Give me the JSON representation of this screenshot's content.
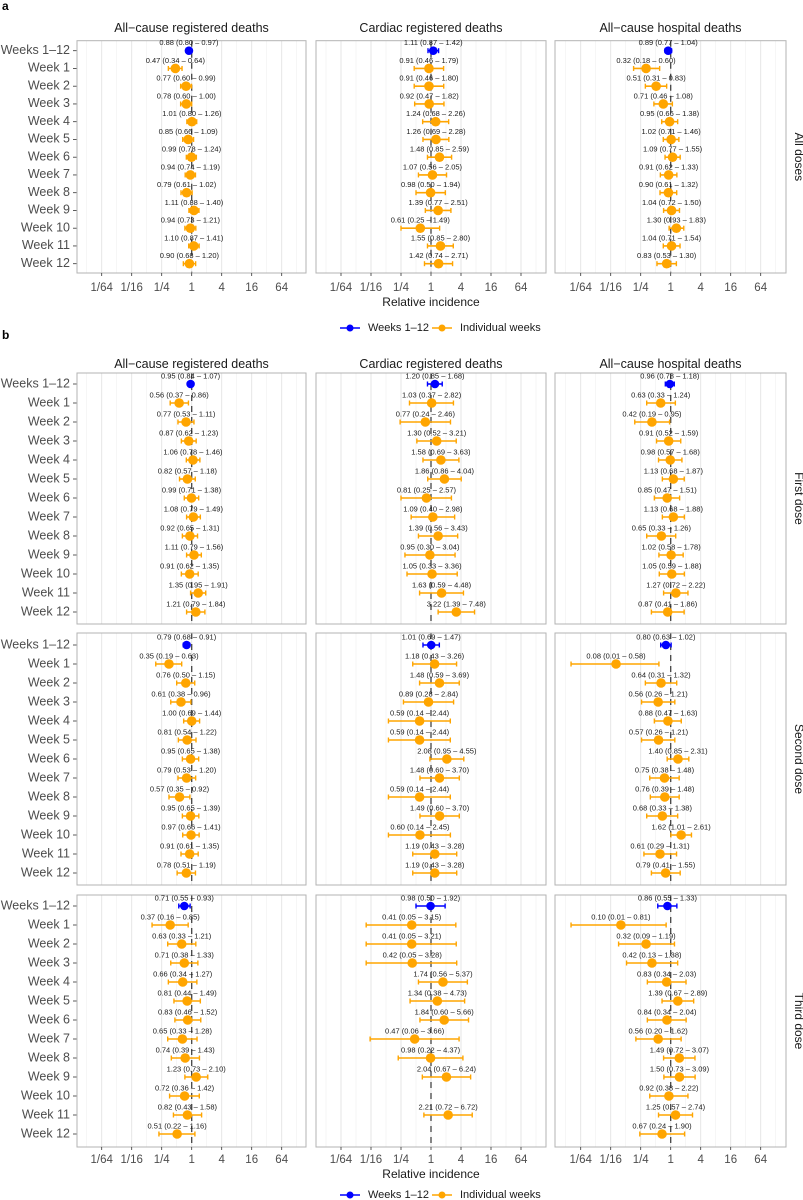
{
  "section_labels": [
    "a",
    "b"
  ],
  "column_titles": [
    "All−cause registered deaths",
    "Cardiac registered deaths",
    "All−cause hospital deaths"
  ],
  "strip_labels": [
    "All doses",
    "First dose",
    "Second dose",
    "Third dose"
  ],
  "chart_data": {
    "type": "scatter",
    "subtype": "forest plot with 95% interval error bars",
    "xlabel": "Relative incidence",
    "x_scale": "log",
    "xlim": [
      0.005,
      195
    ],
    "x_tick_labels": [
      "1/64",
      "1/16",
      "1/4",
      "1",
      "4",
      "16",
      "64"
    ],
    "reference_line": 1,
    "grid": true,
    "categories": [
      "Weeks 1–12",
      "Week 1",
      "Week 2",
      "Week 3",
      "Week 4",
      "Week 5",
      "Week 6",
      "Week 7",
      "Week 8",
      "Week 9",
      "Week 10",
      "Week 11",
      "Week 12"
    ],
    "legend": [
      {
        "name": "Weeks 1–12",
        "color": "#0000FF"
      },
      {
        "name": "Individual weeks",
        "color": "#FFA500"
      }
    ],
    "legend_placement": "bottom",
    "value_format": "estimate (lower – upper)",
    "panels": [
      {
        "section": "a",
        "strip": "All doses",
        "column": "All−cause registered deaths",
        "values": [
          [
            0.88,
            0.8,
            0.97
          ],
          [
            0.47,
            0.34,
            0.64
          ],
          [
            0.77,
            0.6,
            0.99
          ],
          [
            0.78,
            0.6,
            1.0
          ],
          [
            1.01,
            0.8,
            1.26
          ],
          [
            0.85,
            0.66,
            1.09
          ],
          [
            0.99,
            0.78,
            1.24
          ],
          [
            0.94,
            0.74,
            1.19
          ],
          [
            0.79,
            0.61,
            1.02
          ],
          [
            1.11,
            0.88,
            1.4
          ],
          [
            0.94,
            0.73,
            1.21
          ],
          [
            1.1,
            0.87,
            1.41
          ],
          [
            0.9,
            0.68,
            1.2
          ]
        ]
      },
      {
        "section": "a",
        "strip": "All doses",
        "column": "Cardiac registered deaths",
        "values": [
          [
            1.11,
            0.87,
            1.42
          ],
          [
            0.91,
            0.46,
            1.79
          ],
          [
            0.91,
            0.46,
            1.8
          ],
          [
            0.92,
            0.47,
            1.82
          ],
          [
            1.24,
            0.68,
            2.26
          ],
          [
            1.26,
            0.69,
            2.28
          ],
          [
            1.48,
            0.85,
            2.59
          ],
          [
            1.07,
            0.56,
            2.05
          ],
          [
            0.98,
            0.5,
            1.94
          ],
          [
            1.39,
            0.77,
            2.51
          ],
          [
            0.61,
            0.25,
            1.49
          ],
          [
            1.55,
            0.85,
            2.8
          ],
          [
            1.42,
            0.74,
            2.71
          ]
        ]
      },
      {
        "section": "a",
        "strip": "All doses",
        "column": "All−cause hospital deaths",
        "values": [
          [
            0.89,
            0.77,
            1.04
          ],
          [
            0.32,
            0.18,
            0.6
          ],
          [
            0.51,
            0.31,
            0.83
          ],
          [
            0.71,
            0.46,
            1.08
          ],
          [
            0.95,
            0.66,
            1.38
          ],
          [
            1.02,
            0.71,
            1.46
          ],
          [
            1.09,
            0.77,
            1.55
          ],
          [
            0.91,
            0.62,
            1.33
          ],
          [
            0.9,
            0.61,
            1.32
          ],
          [
            1.04,
            0.72,
            1.5
          ],
          [
            1.3,
            0.93,
            1.83
          ],
          [
            1.04,
            0.71,
            1.54
          ],
          [
            0.83,
            0.53,
            1.3
          ]
        ]
      },
      {
        "section": "b",
        "strip": "First dose",
        "column": "All−cause registered deaths",
        "values": [
          [
            0.95,
            0.84,
            1.07
          ],
          [
            0.56,
            0.37,
            0.86
          ],
          [
            0.77,
            0.53,
            1.11
          ],
          [
            0.87,
            0.62,
            1.23
          ],
          [
            1.06,
            0.78,
            1.46
          ],
          [
            0.82,
            0.57,
            1.18
          ],
          [
            0.99,
            0.71,
            1.38
          ],
          [
            1.08,
            0.79,
            1.49
          ],
          [
            0.92,
            0.65,
            1.31
          ],
          [
            1.11,
            0.79,
            1.56
          ],
          [
            0.91,
            0.62,
            1.35
          ],
          [
            1.35,
            0.95,
            1.91
          ],
          [
            1.21,
            0.79,
            1.84
          ]
        ]
      },
      {
        "section": "b",
        "strip": "First dose",
        "column": "Cardiac registered deaths",
        "values": [
          [
            1.2,
            0.85,
            1.68
          ],
          [
            1.03,
            0.37,
            2.82
          ],
          [
            0.77,
            0.24,
            2.46
          ],
          [
            1.3,
            0.52,
            3.21
          ],
          [
            1.58,
            0.69,
            3.63
          ],
          [
            1.86,
            0.86,
            4.04
          ],
          [
            0.81,
            0.25,
            2.57
          ],
          [
            1.09,
            0.4,
            2.98
          ],
          [
            1.39,
            0.56,
            3.43
          ],
          [
            0.95,
            0.3,
            3.04
          ],
          [
            1.05,
            0.33,
            3.36
          ],
          [
            1.63,
            0.59,
            4.48
          ],
          [
            3.22,
            1.39,
            7.48
          ]
        ]
      },
      {
        "section": "b",
        "strip": "First dose",
        "column": "All−cause hospital deaths",
        "values": [
          [
            0.96,
            0.78,
            1.18
          ],
          [
            0.63,
            0.33,
            1.24
          ],
          [
            0.42,
            0.19,
            0.95
          ],
          [
            0.91,
            0.52,
            1.59
          ],
          [
            0.98,
            0.57,
            1.68
          ],
          [
            1.13,
            0.68,
            1.87
          ],
          [
            0.85,
            0.47,
            1.51
          ],
          [
            1.13,
            0.68,
            1.88
          ],
          [
            0.65,
            0.33,
            1.26
          ],
          [
            1.02,
            0.58,
            1.78
          ],
          [
            1.05,
            0.59,
            1.88
          ],
          [
            1.27,
            0.72,
            2.22
          ],
          [
            0.87,
            0.41,
            1.86
          ]
        ]
      },
      {
        "section": "b",
        "strip": "Second dose",
        "column": "All−cause registered deaths",
        "values": [
          [
            0.79,
            0.68,
            0.91
          ],
          [
            0.35,
            0.19,
            0.63
          ],
          [
            0.76,
            0.5,
            1.15
          ],
          [
            0.61,
            0.38,
            0.96
          ],
          [
            1.0,
            0.69,
            1.44
          ],
          [
            0.81,
            0.54,
            1.22
          ],
          [
            0.95,
            0.65,
            1.38
          ],
          [
            0.79,
            0.53,
            1.2
          ],
          [
            0.57,
            0.35,
            0.92
          ],
          [
            0.95,
            0.65,
            1.39
          ],
          [
            0.97,
            0.66,
            1.41
          ],
          [
            0.91,
            0.61,
            1.35
          ],
          [
            0.78,
            0.51,
            1.19
          ]
        ]
      },
      {
        "section": "b",
        "strip": "Second dose",
        "column": "Cardiac registered deaths",
        "values": [
          [
            1.01,
            0.69,
            1.47
          ],
          [
            1.18,
            0.43,
            3.26
          ],
          [
            1.48,
            0.59,
            3.69
          ],
          [
            0.89,
            0.28,
            2.84
          ],
          [
            0.59,
            0.14,
            2.44
          ],
          [
            0.59,
            0.14,
            2.44
          ],
          [
            2.08,
            0.95,
            4.55
          ],
          [
            1.48,
            0.6,
            3.7
          ],
          [
            0.59,
            0.14,
            2.44
          ],
          [
            1.49,
            0.6,
            3.7
          ],
          [
            0.6,
            0.14,
            2.45
          ],
          [
            1.19,
            0.43,
            3.28
          ],
          [
            1.19,
            0.43,
            3.28
          ]
        ]
      },
      {
        "section": "b",
        "strip": "Second dose",
        "column": "All−cause hospital deaths",
        "values": [
          [
            0.8,
            0.63,
            1.02
          ],
          [
            0.08,
            0.01,
            0.58
          ],
          [
            0.64,
            0.31,
            1.32
          ],
          [
            0.56,
            0.26,
            1.21
          ],
          [
            0.88,
            0.47,
            1.63
          ],
          [
            0.57,
            0.26,
            1.21
          ],
          [
            1.4,
            0.85,
            2.31
          ],
          [
            0.75,
            0.38,
            1.48
          ],
          [
            0.76,
            0.39,
            1.48
          ],
          [
            0.68,
            0.33,
            1.38
          ],
          [
            1.62,
            1.01,
            2.61
          ],
          [
            0.61,
            0.29,
            1.31
          ],
          [
            0.79,
            0.41,
            1.55
          ]
        ]
      },
      {
        "section": "b",
        "strip": "Third dose",
        "column": "All−cause registered deaths",
        "values": [
          [
            0.71,
            0.55,
            0.93
          ],
          [
            0.37,
            0.16,
            0.85
          ],
          [
            0.63,
            0.33,
            1.21
          ],
          [
            0.71,
            0.38,
            1.33
          ],
          [
            0.66,
            0.34,
            1.27
          ],
          [
            0.81,
            0.44,
            1.49
          ],
          [
            0.83,
            0.46,
            1.52
          ],
          [
            0.65,
            0.33,
            1.28
          ],
          [
            0.74,
            0.39,
            1.43
          ],
          [
            1.23,
            0.73,
            2.1
          ],
          [
            0.72,
            0.36,
            1.42
          ],
          [
            0.82,
            0.43,
            1.58
          ],
          [
            0.51,
            0.22,
            1.16
          ]
        ]
      },
      {
        "section": "b",
        "strip": "Third dose",
        "column": "Cardiac registered deaths",
        "values": [
          [
            0.98,
            0.5,
            1.92
          ],
          [
            0.41,
            0.05,
            3.15
          ],
          [
            0.41,
            0.05,
            3.21
          ],
          [
            0.42,
            0.05,
            3.28
          ],
          [
            1.74,
            0.56,
            5.37
          ],
          [
            1.34,
            0.38,
            4.73
          ],
          [
            1.84,
            0.6,
            5.66
          ],
          [
            0.47,
            0.06,
            3.66
          ],
          [
            0.98,
            0.22,
            4.37
          ],
          [
            2.04,
            0.67,
            6.24
          ],
          null,
          [
            2.21,
            0.72,
            6.72
          ],
          null
        ]
      },
      {
        "section": "b",
        "strip": "Third dose",
        "column": "All−cause hospital deaths",
        "values": [
          [
            0.86,
            0.55,
            1.33
          ],
          [
            0.1,
            0.01,
            0.81
          ],
          [
            0.32,
            0.09,
            1.19
          ],
          [
            0.42,
            0.13,
            1.38
          ],
          [
            0.83,
            0.34,
            2.03
          ],
          [
            1.39,
            0.67,
            2.89
          ],
          [
            0.84,
            0.34,
            2.04
          ],
          [
            0.56,
            0.2,
            1.62
          ],
          [
            1.49,
            0.72,
            3.07
          ],
          [
            1.5,
            0.73,
            3.09
          ],
          [
            0.92,
            0.38,
            2.22
          ],
          [
            1.25,
            0.57,
            2.74
          ],
          [
            0.67,
            0.24,
            1.9
          ]
        ]
      }
    ]
  }
}
